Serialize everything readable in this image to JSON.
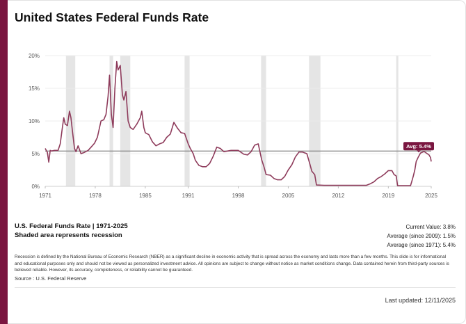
{
  "header": {
    "title": "United States Federal Funds Rate"
  },
  "info": {
    "title": "U.S. Federal Funds Rate | 1971-2025",
    "subtitle": "Shaded area represents recession",
    "current_value": "Current Value: 3.8%",
    "avg_2009": "Average (since 2009): 1.5%",
    "avg_1971": "Average (since 1971): 5.4%",
    "disclaimer": "Recession is defined by the National Bureau of Economic Research (NBER) as a significant decline in economic activity that is spread across the economy and lasts more than a few months. This slide is for informational and educational purposes only and should not be viewed as personalized investment advice. All opinions are subject to change without notice as market conditions change. Data contained herein from third-party sources is believed reliable. However, its accuracy, completeness, or reliability cannot be guaranteed.",
    "source": "Source : U.S. Federal Reserve",
    "last_updated": "Last updated: 12/11/2025"
  },
  "colors": {
    "line": "#8e3b5b",
    "recession": "#e5e5e5",
    "avg_line": "#888888",
    "avg_badge": "#7a1640",
    "accent": "#7a1640"
  },
  "chart_data": {
    "type": "line",
    "xlim": [
      1971,
      2025
    ],
    "ylim": [
      0,
      20
    ],
    "x_ticks": [
      "1971",
      "1978",
      "1985",
      "1991",
      "1998",
      "2005",
      "2012",
      "2019",
      "2025"
    ],
    "y_ticks": [
      "0%",
      "5%",
      "10%",
      "15%",
      "20%"
    ],
    "grid": "horizontal",
    "average": {
      "value": 5.4,
      "label": "Avg: 5.4%"
    },
    "recessions": [
      [
        1973.9,
        1975.2
      ],
      [
        1980.0,
        1980.5
      ],
      [
        1981.5,
        1982.9
      ],
      [
        1990.5,
        1991.2
      ],
      [
        2001.2,
        2001.9
      ],
      [
        2007.9,
        2009.5
      ],
      [
        2020.1,
        2020.4
      ]
    ],
    "series": [
      {
        "x": [
          1971.0,
          1971.3,
          1971.5,
          1971.7,
          1971.9,
          1972.3,
          1972.8,
          1973.1,
          1973.4,
          1973.6,
          1973.8,
          1974.1,
          1974.4,
          1974.6,
          1974.8,
          1975.1,
          1975.3,
          1975.6,
          1976.0,
          1976.5,
          1977.0,
          1977.5,
          1977.9,
          1978.3,
          1978.8,
          1979.2,
          1979.5,
          1979.8,
          1980.0,
          1980.25,
          1980.5,
          1980.75,
          1981.0,
          1981.2,
          1981.5,
          1981.8,
          1982.0,
          1982.3,
          1982.6,
          1982.9,
          1983.3,
          1983.8,
          1984.3,
          1984.5,
          1984.8,
          1985.0,
          1985.5,
          1986.0,
          1986.5,
          1987.0,
          1987.5,
          1988.0,
          1988.5,
          1989.0,
          1989.5,
          1990.0,
          1990.5,
          1991.0,
          1991.3,
          1991.7,
          1992.0,
          1992.5,
          1993.0,
          1993.5,
          1994.0,
          1994.5,
          1995.0,
          1995.5,
          1996.0,
          1997.0,
          1998.0,
          1998.8,
          1999.3,
          1999.8,
          2000.3,
          2000.8,
          2001.0,
          2001.3,
          2001.6,
          2001.9,
          2002.5,
          2003.0,
          2003.5,
          2004.0,
          2004.5,
          2005.0,
          2005.5,
          2006.0,
          2006.5,
          2007.0,
          2007.6,
          2008.0,
          2008.3,
          2008.7,
          2008.95,
          2010.0,
          2015.9,
          2016.5,
          2017.0,
          2017.5,
          2018.0,
          2018.5,
          2019.0,
          2019.5,
          2019.8,
          2020.1,
          2020.3,
          2021.0,
          2022.1,
          2022.3,
          2022.5,
          2022.7,
          2022.9,
          2023.2,
          2023.5,
          2024.0,
          2024.7,
          2024.9,
          2025.0
        ],
        "values": [
          5.8,
          5.2,
          3.7,
          5.5,
          5.4,
          5.5,
          5.5,
          6.5,
          9.0,
          10.5,
          9.5,
          9.3,
          11.5,
          10.5,
          8.5,
          5.8,
          5.3,
          6.2,
          5.0,
          5.2,
          5.5,
          6.1,
          6.6,
          7.5,
          10.0,
          10.2,
          11.0,
          13.8,
          17.0,
          11.0,
          9.0,
          15.0,
          19.1,
          17.8,
          18.5,
          14.0,
          13.2,
          14.5,
          10.0,
          9.0,
          8.7,
          9.5,
          10.5,
          11.5,
          9.0,
          8.2,
          7.9,
          6.8,
          6.2,
          6.5,
          6.7,
          7.5,
          8.0,
          9.8,
          8.9,
          8.2,
          8.1,
          6.5,
          5.8,
          5.0,
          4.0,
          3.2,
          3.0,
          3.0,
          3.5,
          4.6,
          6.0,
          5.8,
          5.3,
          5.5,
          5.5,
          4.9,
          4.8,
          5.3,
          6.3,
          6.5,
          5.5,
          4.0,
          3.0,
          1.8,
          1.7,
          1.2,
          1.0,
          1.0,
          1.5,
          2.5,
          3.3,
          4.5,
          5.25,
          5.25,
          5.0,
          3.5,
          2.3,
          1.8,
          0.2,
          0.15,
          0.15,
          0.4,
          0.7,
          1.2,
          1.5,
          1.9,
          2.4,
          2.4,
          1.8,
          1.6,
          0.1,
          0.1,
          0.1,
          0.8,
          1.6,
          2.5,
          3.8,
          4.5,
          5.1,
          5.33,
          4.8,
          4.4,
          3.8
        ]
      }
    ]
  }
}
